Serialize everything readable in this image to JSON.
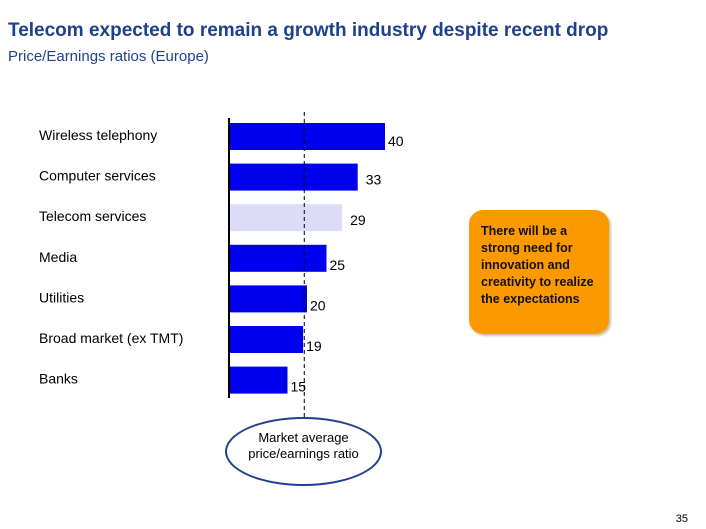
{
  "title": "Telecom expected to remain a growth industry despite recent drop",
  "subtitle": "Price/Earnings ratios   (Europe)",
  "callout": "There will be a strong need for innovation and creativity to realize the expectations",
  "reference_label": "Market average price/earnings ratio",
  "page_number": "35",
  "chart_data": {
    "type": "bar",
    "orientation": "horizontal",
    "categories": [
      "Wireless telephony",
      "Computer services",
      "Telecom services",
      "Media",
      "Utilities",
      "Broad market (ex TMT)",
      "Banks"
    ],
    "values": [
      40,
      33,
      29,
      25,
      20,
      19,
      15
    ],
    "highlighted": "Telecom services",
    "reference_line": 19.3,
    "colors": {
      "bar": "#0000ee",
      "highlight": "#dcdcf8",
      "callout": "#fb9a00"
    },
    "grid": false
  }
}
